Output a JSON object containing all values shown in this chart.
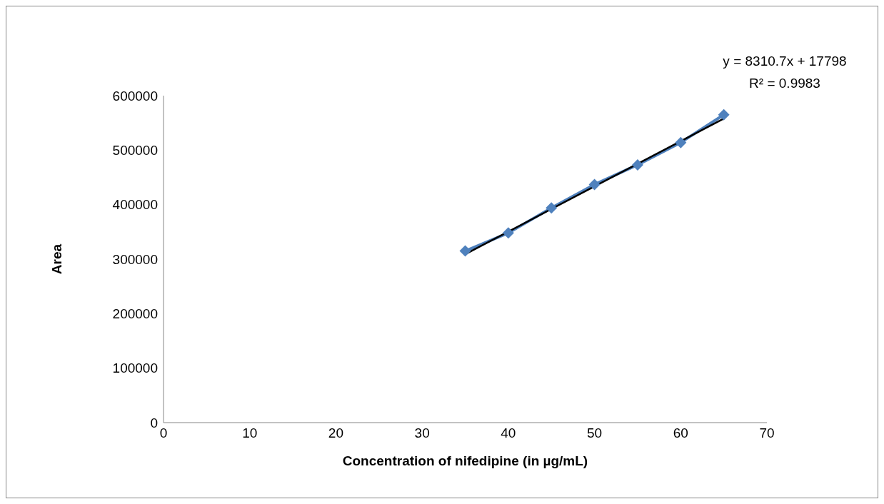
{
  "chart_data": {
    "type": "line",
    "xlabel": "Concentration of nifedipine (in µg/mL)",
    "ylabel": "Area",
    "x": [
      35,
      40,
      45,
      50,
      55,
      60,
      65
    ],
    "series": [
      {
        "color": "#4f81bd",
        "values": [
          315000,
          348000,
          394000,
          437000,
          473000,
          514000,
          565000
        ]
      },
      {
        "type": "line",
        "x": [
          35,
          65
        ],
        "color": "#000000",
        "marker": "none",
        "values": [
          309000,
          558000
        ]
      }
    ],
    "xlim": [
      0,
      70
    ],
    "xticks": [
      0,
      10,
      20,
      30,
      40,
      50,
      60,
      70
    ],
    "ylim": [
      0,
      600000
    ],
    "yticks": [
      0,
      100000,
      200000,
      300000,
      400000,
      500000,
      600000
    ],
    "marker": "diamond",
    "annotations": [
      "y = 8310.7x + 17798",
      "R² = 0.9983"
    ]
  }
}
